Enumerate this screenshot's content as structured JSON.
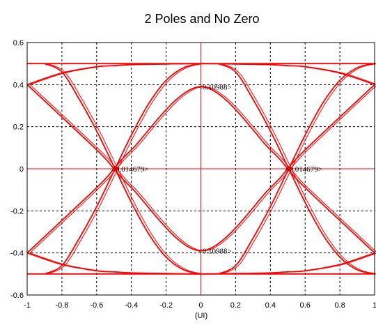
{
  "chart_data": {
    "type": "line",
    "title": "2 Poles and No Zero",
    "xlabel": "(UI)",
    "ylabel": "",
    "xlim": [
      -1,
      1
    ],
    "ylim": [
      -0.6,
      0.6
    ],
    "grid": true,
    "grid_style": "dashed",
    "xticks": [
      -1,
      -0.8,
      -0.6,
      -0.4,
      -0.2,
      0,
      0.2,
      0.4,
      0.6,
      0.8,
      1
    ],
    "xtick_labels": [
      "-1",
      "-0.8",
      "-0.6",
      "-0.4",
      "-0.2",
      "0",
      "0.2",
      "0.4",
      "0.6",
      "0.8",
      "1"
    ],
    "yticks": [
      -0.6,
      -0.4,
      -0.2,
      0,
      0.2,
      0.4,
      0.6
    ],
    "ytick_labels": [
      "-0.6",
      "-0.4",
      "-0.2",
      "0",
      "0.2",
      "0.4",
      "0.6"
    ],
    "line_color": "#ff0000",
    "series": [
      {
        "x": [
          -1,
          -0.6,
          -0.5,
          -0.4,
          0,
          0.4,
          0.5,
          0.6,
          1
        ],
        "y": [
          0.4,
          0.09,
          0,
          -0.09,
          -0.39,
          -0.09,
          0,
          0.09,
          0.4
        ]
      },
      {
        "x": [
          -1,
          -0.6,
          -0.5,
          -0.4,
          0,
          0.4,
          0.5,
          0.6,
          1
        ],
        "y": [
          -0.4,
          -0.09,
          0,
          0.09,
          0.39,
          0.09,
          0,
          -0.09,
          -0.4
        ]
      },
      {
        "x": [
          -1,
          -0.8,
          -0.6,
          -0.5,
          -0.4,
          -0.2,
          0,
          0.2,
          0.4,
          0.5,
          0.6,
          0.8,
          1
        ],
        "y": [
          0.4,
          0.455,
          0.485,
          0.49,
          0.495,
          0.498,
          0.5,
          0.498,
          0.495,
          0.49,
          0.485,
          0.455,
          0.4
        ]
      },
      {
        "x": [
          -1,
          -0.8,
          -0.6,
          -0.5,
          -0.4,
          -0.2,
          0,
          0.2,
          0.4,
          0.5,
          0.6,
          0.8,
          1
        ],
        "y": [
          -0.4,
          -0.455,
          -0.485,
          -0.49,
          -0.495,
          -0.498,
          -0.5,
          -0.498,
          -0.495,
          -0.49,
          -0.485,
          -0.455,
          -0.4
        ]
      },
      {
        "x": [
          -1,
          1
        ],
        "y": [
          0.5,
          0.5
        ]
      },
      {
        "x": [
          -1,
          1
        ],
        "y": [
          -0.5,
          -0.5
        ]
      },
      {
        "x": [
          -0.9,
          -0.8,
          -0.7,
          -0.6,
          -0.5,
          -0.4,
          -0.3,
          -0.2,
          -0.1,
          0
        ],
        "y": [
          0.5,
          0.46,
          0.33,
          0.18,
          0.01,
          -0.16,
          -0.31,
          -0.42,
          -0.48,
          -0.5
        ]
      },
      {
        "x": [
          -0.9,
          -0.8,
          -0.7,
          -0.6,
          -0.5,
          -0.4,
          -0.3,
          -0.2,
          -0.1,
          0
        ],
        "y": [
          -0.5,
          -0.46,
          -0.33,
          -0.18,
          -0.01,
          0.16,
          0.31,
          0.42,
          0.48,
          0.5
        ]
      },
      {
        "x": [
          0.1,
          0.2,
          0.3,
          0.4,
          0.5,
          0.6,
          0.7,
          0.8,
          0.9,
          1
        ],
        "y": [
          0.5,
          0.46,
          0.33,
          0.18,
          0.01,
          -0.16,
          -0.31,
          -0.42,
          -0.48,
          -0.5
        ]
      },
      {
        "x": [
          0.1,
          0.2,
          0.3,
          0.4,
          0.5,
          0.6,
          0.7,
          0.8,
          0.9,
          1
        ],
        "y": [
          -0.5,
          -0.46,
          -0.33,
          -0.18,
          -0.01,
          0.16,
          0.31,
          0.42,
          0.48,
          0.5
        ]
      }
    ],
    "markers": [
      {
        "orientation": "vertical",
        "x": 0
      },
      {
        "orientation": "horizontal",
        "y": 0
      }
    ],
    "annotations": [
      {
        "text": "<0.10988>",
        "x": 0,
        "y": 0.39
      },
      {
        "text": "<0.10988>",
        "x": 0,
        "y": -0.39
      },
      {
        "text": "<0.014679>",
        "x": -0.5,
        "y": 0
      },
      {
        "text": "<0.014679>",
        "x": 0.5,
        "y": 0
      }
    ]
  }
}
